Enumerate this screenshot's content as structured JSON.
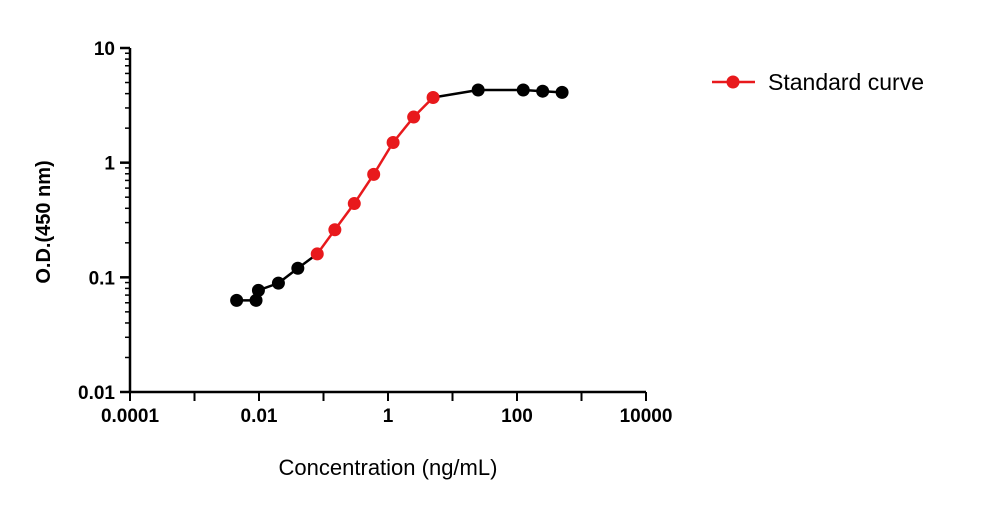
{
  "chart_data": {
    "type": "line",
    "xlabel": "Concentration (ng/mL)",
    "ylabel": "O.D.(450 nm)",
    "x_scale": "log",
    "y_scale": "log",
    "xlim": [
      0.0001,
      10000
    ],
    "ylim": [
      0.01,
      10
    ],
    "x_ticks": [
      "0.0001",
      "0.01",
      "1",
      "100",
      "10000"
    ],
    "y_ticks": [
      "0.01",
      "0.1",
      "1",
      "10"
    ],
    "legend": {
      "position": "top-right",
      "entries": [
        "Standard curve"
      ]
    },
    "grid": false,
    "colors": {
      "highlight": "#e8191c",
      "base": "#000000"
    },
    "series": [
      {
        "name": "Standard curve",
        "points": [
          {
            "x": 0.0045,
            "y": 0.063
          },
          {
            "x": 0.009,
            "y": 0.063
          },
          {
            "x": 0.0098,
            "y": 0.077
          },
          {
            "x": 0.02,
            "y": 0.089
          },
          {
            "x": 0.04,
            "y": 0.12
          },
          {
            "x": 0.08,
            "y": 0.16
          },
          {
            "x": 0.15,
            "y": 0.26
          },
          {
            "x": 0.3,
            "y": 0.44
          },
          {
            "x": 0.6,
            "y": 0.79
          },
          {
            "x": 1.2,
            "y": 1.5
          },
          {
            "x": 2.5,
            "y": 2.5
          },
          {
            "x": 5,
            "y": 3.7
          },
          {
            "x": 25,
            "y": 4.3
          },
          {
            "x": 125,
            "y": 4.3
          },
          {
            "x": 250,
            "y": 4.2
          },
          {
            "x": 500,
            "y": 4.1
          }
        ],
        "highlight_range": [
          5,
          11
        ]
      }
    ]
  }
}
